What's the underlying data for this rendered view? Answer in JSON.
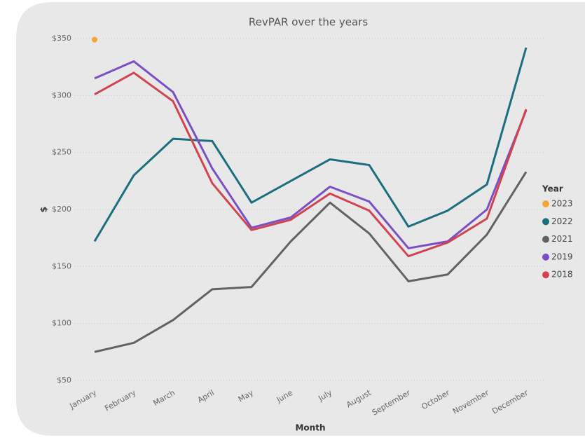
{
  "chart_data": {
    "type": "line",
    "title": "RevPAR over the years",
    "x_label": "Month",
    "y_label": "$",
    "categories": [
      "January",
      "February",
      "March",
      "April",
      "May",
      "June",
      "July",
      "August",
      "September",
      "October",
      "November",
      "December"
    ],
    "series": [
      {
        "name": "2023",
        "color": "#f2a633",
        "values": [
          349,
          null,
          null,
          null,
          null,
          null,
          null,
          null,
          null,
          null,
          null,
          null
        ]
      },
      {
        "name": "2022",
        "color": "#1b6e7f",
        "values": [
          172,
          230,
          262,
          260,
          206,
          225,
          244,
          239,
          185,
          199,
          222,
          342
        ]
      },
      {
        "name": "2021",
        "color": "#626262",
        "values": [
          75,
          83,
          103,
          130,
          132,
          172,
          206,
          179,
          137,
          143,
          178,
          233
        ]
      },
      {
        "name": "2019",
        "color": "#7a4fc6",
        "values": [
          315,
          330,
          303,
          236,
          184,
          193,
          220,
          207,
          166,
          172,
          200,
          287
        ]
      },
      {
        "name": "2018",
        "color": "#d1434f",
        "values": [
          301,
          320,
          295,
          223,
          182,
          191,
          214,
          199,
          159,
          171,
          192,
          288
        ]
      }
    ],
    "ylim": [
      50,
      350
    ],
    "yticks": [
      {
        "value": 50,
        "label": "$50"
      },
      {
        "value": 100,
        "label": "$100"
      },
      {
        "value": 150,
        "label": "$150"
      },
      {
        "value": 200,
        "label": "$200"
      },
      {
        "value": 250,
        "label": "$250"
      },
      {
        "value": 300,
        "label": "$300"
      },
      {
        "value": 350,
        "label": "$350"
      }
    ],
    "grid": true,
    "legend_title": "Year",
    "legend": "right"
  }
}
